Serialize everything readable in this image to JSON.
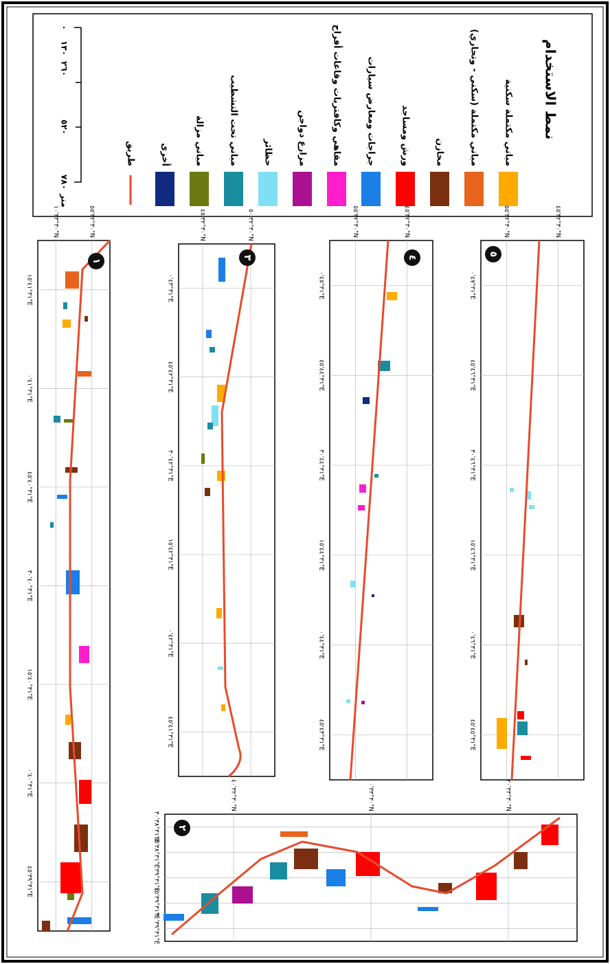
{
  "legend": {
    "title": "نمط الاستخدام",
    "items": [
      "مباني مكتملة سكنية",
      "مباني مكتملة (سكني - وتجاري)",
      "مخازن",
      "ورش ومساجد",
      "جراجات ومعارض سيارات",
      "مقاهي وكافتريات وقاعات أفراح",
      "مزارع دواجن",
      "حظائر",
      "مباني تحت التشطيب",
      "مباني مزالة",
      "أخرى",
      "طريق"
    ],
    "colors": [
      "#ffaa00",
      "#e8641c",
      "#7a3010",
      "#ff0000",
      "#1a7fe6",
      "#ff1ecc",
      "#aa1090",
      "#7fe0f5",
      "#1a8ca0",
      "#6a7a10",
      "#102a80",
      "#e84a2c"
    ]
  },
  "scale": {
    "labels": [
      "٠",
      "١٣٠",
      "٢٦٠",
      "٥٢٠",
      "٧٨٠"
    ],
    "unit": "متر"
  },
  "panels": [
    {
      "number": "١",
      "lat_labels": [
        "٣٠°٣٢'٥٥\"N",
        "٣٠°٣٣'١٠\"N"
      ],
      "lon_labels": [
        "٣١°٤١'١٥\"E",
        "٣١°٤١'٠\"E",
        "٣١°٤٠'٤٥\"E",
        "٣١°٤٠'٣٠\"E",
        "٣١°٤٠'١٥\"E",
        "٣١°٤٠'٠\"E",
        "٣١°٣٩'٤٥\"E"
      ]
    },
    {
      "number": "٣",
      "lat_labels": [
        "٣٠°٣٢'٥٠\"N",
        "٣٠°٣٢'٤٥\"N"
      ],
      "lon_labels": [
        "٣١°٤٣'٠\"E",
        "٣١°٤٢'٤٥\"E",
        "٣١°٤٢'٣٠\"E",
        "٣١°٤٢'١٥\"E",
        "٣١°٤٢'٠\"E",
        "٣١°٤١'٤٥\"E"
      ]
    },
    {
      "number": "٤",
      "lat_labels": [
        "٣٠°٣٢'٤٥\"N",
        "٣٠°٣٢'٥٥\"N"
      ],
      "lon_labels": [
        "٣١°٤٥'٠\"E",
        "٣١°٤٤'٤٥\"E",
        "٣١°٤٤'٣٠\"E",
        "٣١°٤٤'١٥\"E",
        "٣١°٤٤'٠\"E",
        "٣١°٤٣'٤٥\"E"
      ]
    },
    {
      "number": "٥",
      "lat_labels": [
        "٣٠°٣٢'٤٥\"N",
        "٣٠°٣٢'٥٥\"N"
      ],
      "lon_labels": [
        "٣١°٤٧'٠\"E",
        "٣١°٤٦'٤٥\"E",
        "٣١°٤٦'٣٠\"E",
        "٣١°٤٦'١٥\"E",
        "٣١°٤٦'٠\"E",
        "٣١°٤٥'٤٥\"E"
      ]
    },
    {
      "number": "٢",
      "lat_labels": [
        "٣٠°٣٣'٢٠\"N",
        "٣٠°٣٣'٠\"N",
        "٣٠°٣٢'٤٠\"N"
      ],
      "lon_labels": [
        "٣١°٣٨'٣٠\"E",
        "٣١°٣٨'٤٥\"E",
        "٣١°٣٩'٠\"E",
        "٣١°٣٩'١٥\"E",
        "٣١°٣٩'٣٠\"E"
      ]
    }
  ]
}
